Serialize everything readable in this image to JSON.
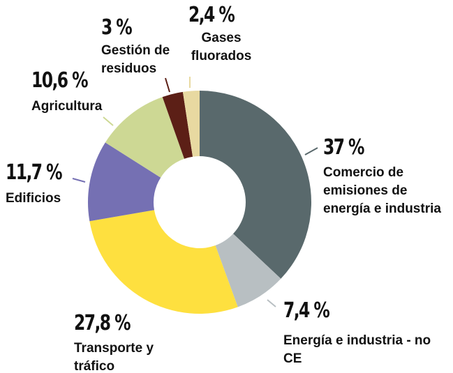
{
  "chart_data": {
    "type": "pie",
    "categories": [
      "Comercio de emisiones de energía e industria",
      "Energía e industria - no CE",
      "Transporte y tráfico",
      "Edificios",
      "Agricultura",
      "Gestión de residuos",
      "Gases fluorados"
    ],
    "values": [
      37,
      7.4,
      27.8,
      11.7,
      10.6,
      3,
      2.4
    ],
    "value_labels": [
      "37 %",
      "7,4 %",
      "27,8 %",
      "11,7 %",
      "10,6 %",
      "3 %",
      "2,4 %"
    ],
    "colors": [
      "#59696c",
      "#b8bfc2",
      "#fee03f",
      "#7570b3",
      "#cdd894",
      "#5c1f16",
      "#e8d9a1"
    ]
  }
}
